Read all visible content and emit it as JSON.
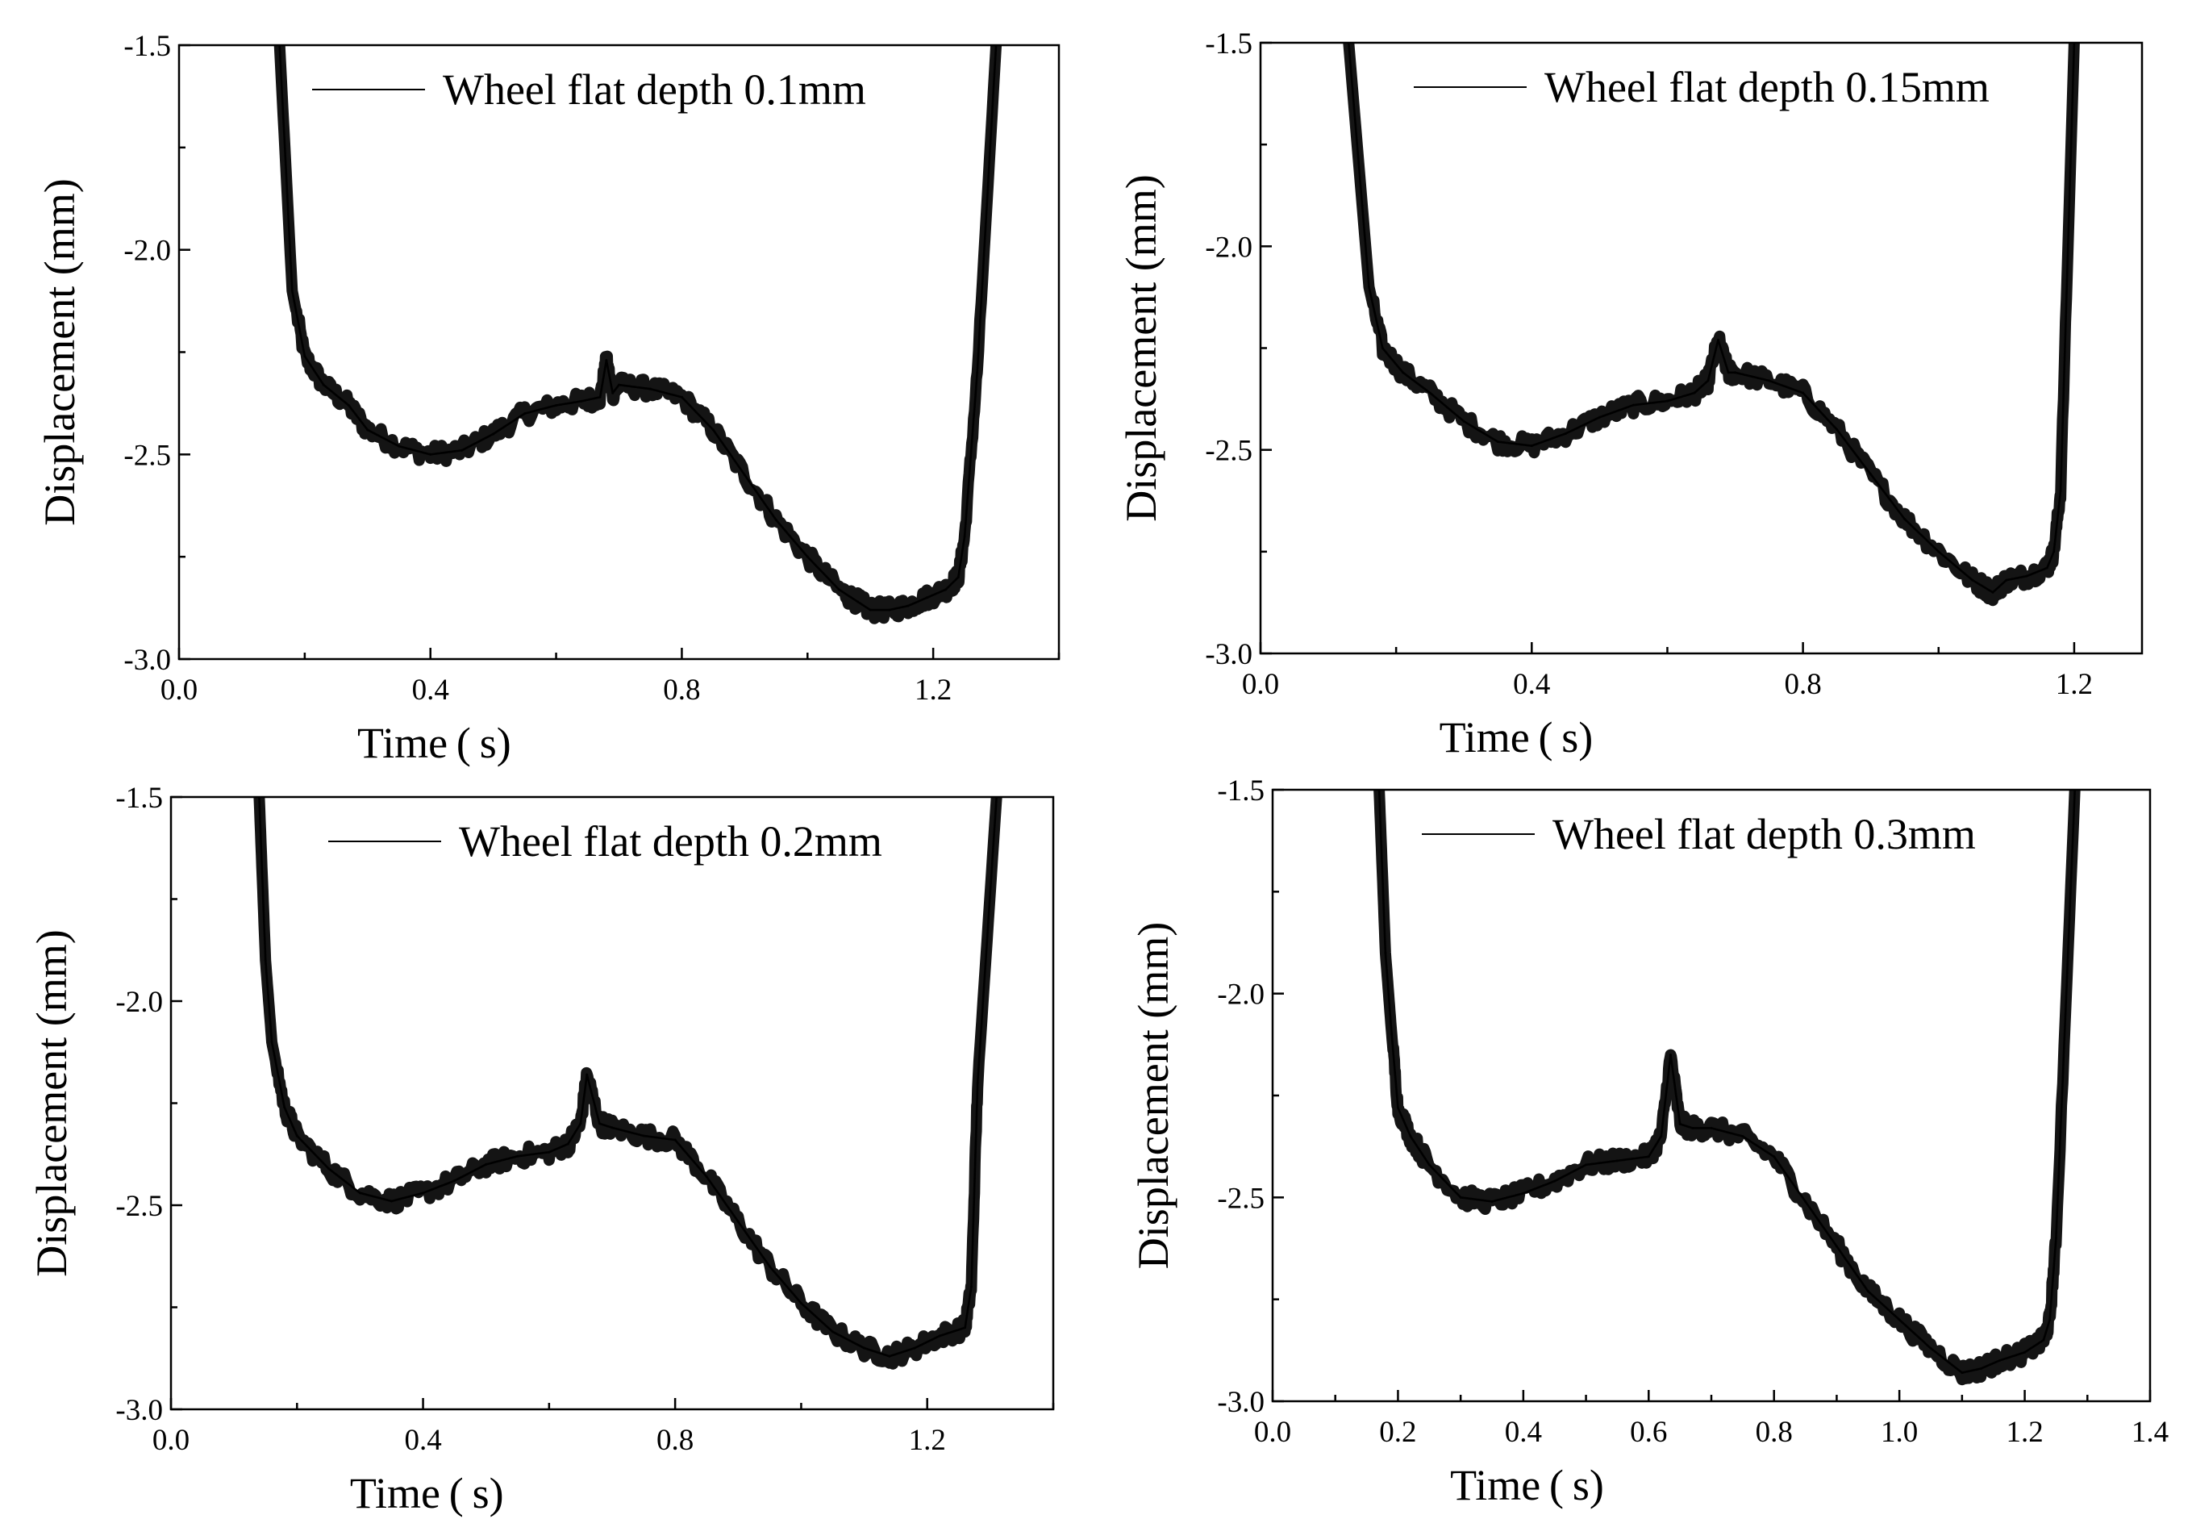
{
  "chart_data": [
    {
      "type": "line",
      "legend": "Wheel flat depth 0.1mm",
      "xlabel": "Time (s)",
      "ylabel": "Displacement (mm)",
      "xlim": [
        0.0,
        1.4
      ],
      "ylim": [
        -3.0,
        -1.5
      ],
      "xticks": [
        0.0,
        0.4,
        0.8,
        1.2
      ],
      "xtick_labels": [
        "0.0",
        "0.4",
        "0.8",
        "1.2"
      ],
      "yticks": [
        -1.5,
        -2.0,
        -2.5,
        -3.0
      ],
      "ytick_labels": [
        "-1.5",
        "-2.0",
        "-2.5",
        "-3.0"
      ],
      "x": [
        0.16,
        0.18,
        0.2,
        0.23,
        0.27,
        0.3,
        0.35,
        0.4,
        0.45,
        0.5,
        0.55,
        0.6,
        0.64,
        0.67,
        0.68,
        0.69,
        0.7,
        0.75,
        0.8,
        0.85,
        0.9,
        0.95,
        1.0,
        1.05,
        1.08,
        1.1,
        1.13,
        1.16,
        1.19,
        1.22,
        1.24,
        1.25,
        1.27,
        1.3
      ],
      "y": [
        -1.5,
        -2.1,
        -2.26,
        -2.33,
        -2.38,
        -2.44,
        -2.48,
        -2.5,
        -2.49,
        -2.45,
        -2.4,
        -2.38,
        -2.37,
        -2.36,
        -2.27,
        -2.35,
        -2.33,
        -2.34,
        -2.36,
        -2.44,
        -2.55,
        -2.66,
        -2.75,
        -2.83,
        -2.86,
        -2.88,
        -2.88,
        -2.87,
        -2.85,
        -2.83,
        -2.8,
        -2.7,
        -2.3,
        -1.5
      ]
    },
    {
      "type": "line",
      "legend": "Wheel flat depth 0.15mm",
      "xlabel": "Time (s)",
      "ylabel": "Displacement (mm)",
      "xlim": [
        0.0,
        1.3
      ],
      "ylim": [
        -3.0,
        -1.5
      ],
      "xticks": [
        0.0,
        0.4,
        0.8,
        1.2
      ],
      "xtick_labels": [
        "0.0",
        "0.4",
        "0.8",
        "1.2"
      ],
      "yticks": [
        -1.5,
        -2.0,
        -2.5,
        -3.0
      ],
      "ytick_labels": [
        "-1.5",
        "-2.0",
        "-2.5",
        "-3.0"
      ],
      "x": [
        0.13,
        0.15,
        0.16,
        0.18,
        0.21,
        0.25,
        0.3,
        0.35,
        0.4,
        0.45,
        0.5,
        0.55,
        0.6,
        0.64,
        0.66,
        0.675,
        0.69,
        0.7,
        0.75,
        0.8,
        0.85,
        0.9,
        0.95,
        1.0,
        1.05,
        1.08,
        1.1,
        1.13,
        1.16,
        1.17,
        1.18,
        1.2
      ],
      "y": [
        -1.5,
        -1.9,
        -2.1,
        -2.25,
        -2.31,
        -2.36,
        -2.43,
        -2.48,
        -2.49,
        -2.46,
        -2.42,
        -2.39,
        -2.38,
        -2.36,
        -2.33,
        -2.23,
        -2.31,
        -2.31,
        -2.33,
        -2.36,
        -2.45,
        -2.56,
        -2.67,
        -2.75,
        -2.82,
        -2.85,
        -2.82,
        -2.81,
        -2.79,
        -2.75,
        -2.6,
        -1.5
      ]
    },
    {
      "type": "line",
      "legend": "Wheel flat depth 0.2mm",
      "xlabel": "Time (s)",
      "ylabel": "Displacement (mm)",
      "xlim": [
        0.0,
        1.4
      ],
      "ylim": [
        -3.0,
        -1.5
      ],
      "xticks": [
        0.0,
        0.4,
        0.8,
        1.2
      ],
      "xtick_labels": [
        "0.0",
        "0.4",
        "0.8",
        "1.2"
      ],
      "yticks": [
        -1.5,
        -2.0,
        -2.5,
        -3.0
      ],
      "ytick_labels": [
        "-1.5",
        "-2.0",
        "-2.5",
        "-3.0"
      ],
      "x": [
        0.14,
        0.15,
        0.16,
        0.18,
        0.2,
        0.25,
        0.3,
        0.35,
        0.4,
        0.45,
        0.5,
        0.55,
        0.6,
        0.63,
        0.65,
        0.66,
        0.68,
        0.7,
        0.75,
        0.8,
        0.85,
        0.9,
        0.95,
        1.0,
        1.05,
        1.1,
        1.14,
        1.18,
        1.22,
        1.26,
        1.27,
        1.28,
        1.31
      ],
      "y": [
        -1.5,
        -1.9,
        -2.1,
        -2.26,
        -2.33,
        -2.41,
        -2.47,
        -2.49,
        -2.47,
        -2.44,
        -2.4,
        -2.38,
        -2.37,
        -2.35,
        -2.3,
        -2.18,
        -2.3,
        -2.31,
        -2.33,
        -2.34,
        -2.43,
        -2.54,
        -2.65,
        -2.74,
        -2.81,
        -2.85,
        -2.87,
        -2.85,
        -2.82,
        -2.8,
        -2.7,
        -2.2,
        -1.5
      ]
    },
    {
      "type": "line",
      "legend": "Wheel flat depth 0.3mm",
      "xlabel": "Time (s)",
      "ylabel": "Displacement (mm)",
      "xlim": [
        0.0,
        1.4
      ],
      "ylim": [
        -3.0,
        -1.5
      ],
      "xticks": [
        0.0,
        0.2,
        0.4,
        0.6,
        0.8,
        1.0,
        1.2,
        1.4
      ],
      "xtick_labels": [
        "0.0",
        "0.2",
        "0.4",
        "0.6",
        "0.8",
        "1.0",
        "1.2",
        "1.4"
      ],
      "yticks": [
        -1.5,
        -2.0,
        -2.5,
        -3.0
      ],
      "ytick_labels": [
        "-1.5",
        "-2.0",
        "-2.5",
        "-3.0"
      ],
      "x": [
        0.17,
        0.18,
        0.19,
        0.2,
        0.22,
        0.25,
        0.3,
        0.35,
        0.4,
        0.45,
        0.5,
        0.55,
        0.6,
        0.62,
        0.635,
        0.65,
        0.67,
        0.7,
        0.75,
        0.8,
        0.85,
        0.9,
        0.95,
        1.0,
        1.05,
        1.1,
        1.13,
        1.16,
        1.2,
        1.23,
        1.24,
        1.25,
        1.28
      ],
      "y": [
        -1.5,
        -1.9,
        -2.1,
        -2.28,
        -2.35,
        -2.42,
        -2.5,
        -2.51,
        -2.49,
        -2.46,
        -2.42,
        -2.41,
        -2.4,
        -2.35,
        -2.15,
        -2.32,
        -2.33,
        -2.33,
        -2.35,
        -2.4,
        -2.51,
        -2.62,
        -2.73,
        -2.8,
        -2.87,
        -2.93,
        -2.92,
        -2.9,
        -2.88,
        -2.85,
        -2.8,
        -2.6,
        -1.5
      ]
    }
  ]
}
